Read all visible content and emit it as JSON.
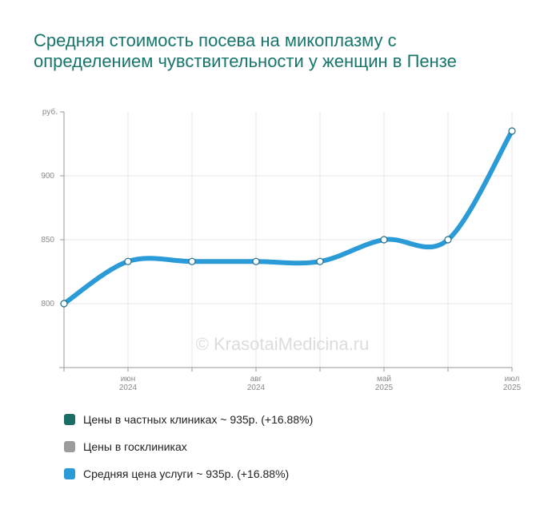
{
  "title": "Средняя стоимость посева на микоплазму с определением чувствительности у женщин в Пензе",
  "watermark": "© KrasotaiMedicina.ru",
  "y_unit": "руб.",
  "chart_data": {
    "type": "line",
    "x": [
      "2024-04",
      "2024-06",
      "2024-07",
      "2024-08",
      "2024-09",
      "2025-05",
      "2025-06",
      "2025-07"
    ],
    "series": [
      {
        "name": "Средняя цена услуги",
        "values": [
          800,
          833,
          833,
          833,
          833,
          850,
          850,
          935
        ]
      }
    ],
    "ylim": [
      750,
      950
    ],
    "y_ticks": [
      {
        "value": 800,
        "label": "800"
      },
      {
        "value": 850,
        "label": "850"
      },
      {
        "value": 900,
        "label": "900"
      }
    ],
    "x_ticks": [
      {
        "index": 1,
        "month": "июн",
        "year": "2024"
      },
      {
        "index": 3,
        "month": "авг",
        "year": "2024"
      },
      {
        "index": 5,
        "month": "май",
        "year": "2025"
      },
      {
        "index": 7,
        "month": "июл",
        "year": "2025"
      }
    ],
    "grid": true,
    "legend_position": "bottom",
    "colors": {
      "line": "#2a9bd6",
      "axis": "#9a9a9a",
      "grid": "#e4e4e4"
    }
  },
  "legend": [
    {
      "label": "Цены в частных клиниках ~ 935р. (+16.88%)",
      "color": "#1a6e66"
    },
    {
      "label": "Цены в госклиниках",
      "color": "#9c9c9c"
    },
    {
      "label": "Средняя цена услуги ~ 935р. (+16.88%)",
      "color": "#2a9bd6"
    }
  ]
}
